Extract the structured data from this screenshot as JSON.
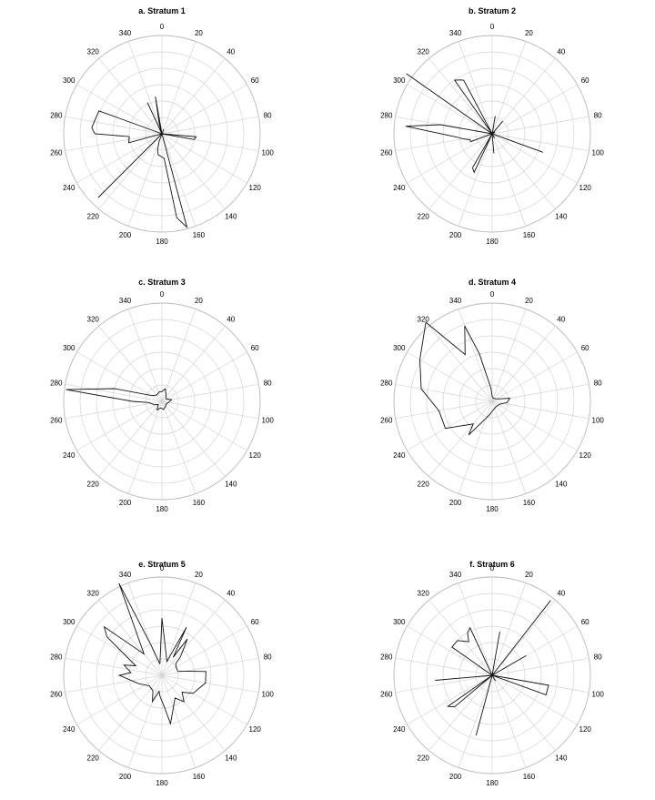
{
  "chart_data": [
    {
      "type": "rose",
      "title": "a. Stratum 1",
      "angle_ticks": [
        "0",
        "20",
        "40",
        "60",
        "80",
        "100",
        "120",
        "140",
        "160",
        "180",
        "200",
        "220",
        "240",
        "260",
        "280",
        "300",
        "320",
        "340"
      ],
      "rings": 6,
      "points": [
        [
          0,
          0
        ],
        [
          22,
          0.3
        ],
        [
          30,
          0
        ],
        [
          95,
          2.1
        ],
        [
          100,
          2.0
        ],
        [
          105,
          0
        ],
        [
          165,
          5.9
        ],
        [
          170,
          5.2
        ],
        [
          175,
          1.5
        ],
        [
          190,
          1.3
        ],
        [
          195,
          1.0
        ],
        [
          200,
          0.5
        ],
        [
          220,
          0
        ],
        [
          225,
          5.5
        ],
        [
          230,
          0
        ],
        [
          255,
          2.1
        ],
        [
          265,
          2.0
        ],
        [
          270,
          4.1
        ],
        [
          275,
          4.3
        ],
        [
          280,
          4.2
        ],
        [
          290,
          4.1
        ],
        [
          300,
          0
        ],
        [
          330,
          0
        ],
        [
          335,
          2.1
        ],
        [
          340,
          0
        ],
        [
          345,
          0.6
        ],
        [
          350,
          2.3
        ],
        [
          355,
          0
        ]
      ]
    },
    {
      "type": "rose",
      "title": "b. Stratum 2",
      "angle_ticks": [
        "0",
        "20",
        "40",
        "60",
        "80",
        "100",
        "120",
        "140",
        "160",
        "180",
        "200",
        "220",
        "240",
        "260",
        "280",
        "300",
        "320",
        "340"
      ],
      "rings": 6,
      "points": [
        [
          0,
          0
        ],
        [
          10,
          1.1
        ],
        [
          15,
          0
        ],
        [
          40,
          1.0
        ],
        [
          45,
          0
        ],
        [
          60,
          0.2
        ],
        [
          70,
          0
        ],
        [
          110,
          3.3
        ],
        [
          115,
          0
        ],
        [
          150,
          0.3
        ],
        [
          160,
          0
        ],
        [
          175,
          1.2
        ],
        [
          180,
          0
        ],
        [
          205,
          2.6
        ],
        [
          210,
          2.4
        ],
        [
          215,
          0
        ],
        [
          240,
          0
        ],
        [
          250,
          1.4
        ],
        [
          255,
          1.4
        ],
        [
          260,
          1.8
        ],
        [
          265,
          2.2
        ],
        [
          275,
          5.3
        ],
        [
          280,
          3.2
        ],
        [
          285,
          0
        ],
        [
          300,
          0
        ],
        [
          305,
          6.4
        ],
        [
          310,
          0
        ],
        [
          325,
          4.0
        ],
        [
          330,
          3.8
        ],
        [
          332,
          3.7
        ],
        [
          335,
          0
        ],
        [
          345,
          0
        ]
      ]
    },
    {
      "type": "rose",
      "title": "c. Stratum 3",
      "angle_ticks": [
        "0",
        "20",
        "40",
        "60",
        "80",
        "100",
        "120",
        "140",
        "160",
        "180",
        "200",
        "220",
        "240",
        "260",
        "280",
        "300",
        "320",
        "340"
      ],
      "rings": 6,
      "points": [
        [
          0,
          0.6
        ],
        [
          15,
          0.8
        ],
        [
          30,
          0.5
        ],
        [
          60,
          0.3
        ],
        [
          80,
          0.6
        ],
        [
          100,
          0.4
        ],
        [
          120,
          0.3
        ],
        [
          150,
          0.4
        ],
        [
          170,
          0.5
        ],
        [
          190,
          0.4
        ],
        [
          210,
          0.6
        ],
        [
          230,
          0.3
        ],
        [
          245,
          0.5
        ],
        [
          265,
          0.8
        ],
        [
          270,
          1.8
        ],
        [
          277,
          5.9
        ],
        [
          285,
          3.0
        ],
        [
          300,
          0.7
        ],
        [
          320,
          0.5
        ],
        [
          345,
          0.6
        ]
      ]
    },
    {
      "type": "rose",
      "title": "d. Stratum 4",
      "angle_ticks": [
        "0",
        "20",
        "40",
        "60",
        "80",
        "100",
        "120",
        "140",
        "160",
        "180",
        "200",
        "220",
        "240",
        "260",
        "280",
        "300",
        "320",
        "340"
      ],
      "rings": 6,
      "points": [
        [
          0,
          0.3
        ],
        [
          20,
          0.2
        ],
        [
          60,
          0.3
        ],
        [
          80,
          1.1
        ],
        [
          95,
          0.9
        ],
        [
          110,
          0.5
        ],
        [
          140,
          0.4
        ],
        [
          170,
          0.5
        ],
        [
          190,
          0.8
        ],
        [
          200,
          1.1
        ],
        [
          215,
          2.5
        ],
        [
          220,
          1.8
        ],
        [
          240,
          3.3
        ],
        [
          260,
          3.3
        ],
        [
          280,
          4.4
        ],
        [
          300,
          5.1
        ],
        [
          320,
          6.3
        ],
        [
          330,
          3.3
        ],
        [
          340,
          4.9
        ],
        [
          345,
          3.0
        ],
        [
          355,
          0.8
        ]
      ]
    },
    {
      "type": "rose",
      "title": "e. Stratum 5",
      "angle_ticks": [
        "0",
        "20",
        "40",
        "60",
        "80",
        "100",
        "120",
        "140",
        "160",
        "180",
        "200",
        "220",
        "240",
        "260",
        "280",
        "300",
        "320",
        "340"
      ],
      "rings": 6,
      "points": [
        [
          0,
          3.5
        ],
        [
          10,
          1.4
        ],
        [
          20,
          0.9
        ],
        [
          27,
          3.3
        ],
        [
          32,
          1.3
        ],
        [
          35,
          2.7
        ],
        [
          45,
          1.6
        ],
        [
          50,
          1.1
        ],
        [
          60,
          1.0
        ],
        [
          75,
          1.0
        ],
        [
          85,
          2.7
        ],
        [
          100,
          2.7
        ],
        [
          120,
          2.2
        ],
        [
          130,
          1.6
        ],
        [
          140,
          2.1
        ],
        [
          150,
          1.6
        ],
        [
          170,
          3.0
        ],
        [
          175,
          2.0
        ],
        [
          185,
          1.3
        ],
        [
          190,
          1.0
        ],
        [
          200,
          1.7
        ],
        [
          210,
          1.1
        ],
        [
          230,
          1.0
        ],
        [
          250,
          1.5
        ],
        [
          270,
          2.6
        ],
        [
          275,
          1.9
        ],
        [
          285,
          2.4
        ],
        [
          290,
          1.7
        ],
        [
          305,
          4.1
        ],
        [
          310,
          4.6
        ],
        [
          320,
          1.7
        ],
        [
          335,
          6.2
        ],
        [
          340,
          2.0
        ],
        [
          350,
          0.7
        ]
      ]
    },
    {
      "type": "rose",
      "title": "f. Stratum 6",
      "angle_ticks": [
        "0",
        "20",
        "40",
        "60",
        "80",
        "100",
        "120",
        "140",
        "160",
        "180",
        "200",
        "220",
        "240",
        "260",
        "280",
        "300",
        "320",
        "340"
      ],
      "rings": 6,
      "points": [
        [
          0,
          0
        ],
        [
          10,
          2.7
        ],
        [
          15,
          0
        ],
        [
          33,
          0
        ],
        [
          38,
          5.8
        ],
        [
          42,
          0
        ],
        [
          55,
          0
        ],
        [
          60,
          2.4
        ],
        [
          65,
          0
        ],
        [
          95,
          0
        ],
        [
          100,
          3.5
        ],
        [
          110,
          3.5
        ],
        [
          115,
          0
        ],
        [
          145,
          0
        ],
        [
          150,
          0.4
        ],
        [
          160,
          0
        ],
        [
          190,
          0
        ],
        [
          195,
          3.8
        ],
        [
          200,
          0
        ],
        [
          225,
          0
        ],
        [
          230,
          3.0
        ],
        [
          235,
          3.3
        ],
        [
          240,
          0
        ],
        [
          260,
          0
        ],
        [
          265,
          3.5
        ],
        [
          270,
          0
        ],
        [
          290,
          0
        ],
        [
          305,
          3.0
        ],
        [
          315,
          3.0
        ],
        [
          325,
          2.5
        ],
        [
          330,
          3.0
        ],
        [
          335,
          3.2
        ],
        [
          340,
          0
        ]
      ]
    }
  ]
}
